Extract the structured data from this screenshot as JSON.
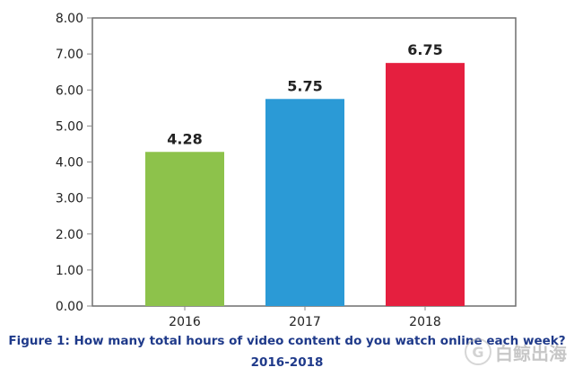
{
  "chart_data": {
    "type": "bar",
    "categories": [
      "2016",
      "2017",
      "2018"
    ],
    "values": [
      4.28,
      5.75,
      6.75
    ],
    "value_labels": [
      "4.28",
      "5.75",
      "6.75"
    ],
    "bar_colors": [
      "#8dc24b",
      "#2b9ad6",
      "#e51f3f"
    ],
    "ylim": [
      0,
      8
    ],
    "y_ticks": [
      "0.00",
      "1.00",
      "2.00",
      "3.00",
      "4.00",
      "5.00",
      "6.00",
      "7.00",
      "8.00"
    ],
    "grid": false,
    "title": "",
    "xlabel": "",
    "ylabel": ""
  },
  "caption": {
    "line1": "Figure 1: How many total hours of video content do you watch online each week?",
    "line2": "2016-2018"
  },
  "watermark": {
    "logo_glyph": "G",
    "text": "白鲸出海"
  },
  "colors": {
    "axis": "#8a8a8a",
    "frame": "#6e6e6e",
    "caption": "#1f3a8a",
    "label": "#222222"
  }
}
